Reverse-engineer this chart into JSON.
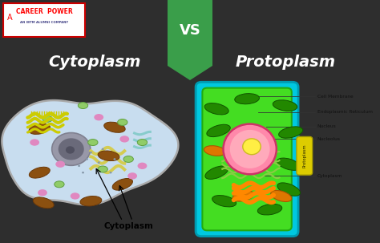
{
  "bg_dark": "#2e2e2e",
  "bg_left": "#f0f4f8",
  "bg_right": "#c8c8c8",
  "left_title": "Cytoplasm",
  "right_title": "Protoplasm",
  "vs_text": "VS",
  "vs_bg": "#3a9e4a",
  "title_color": "#ffffff",
  "fig_width": 4.74,
  "fig_height": 3.03,
  "cytoplasm_label": "Cytoplasm",
  "right_labels": [
    "Cell Membrane",
    "Endoplasmic Reticulum",
    "Nucleus",
    "Nucleolus",
    "Cytoplasm"
  ],
  "cell_fill": "#c8ddef",
  "cell_border": "#aaaaaa",
  "nucleus_outer": "#888898",
  "nucleus_inner": "#606070",
  "mito_color": "#8B4513",
  "golgi_color": "#cccc00",
  "er_color": "#d4c860",
  "green_dot": "#88cc66",
  "pink_dot": "#e080c0",
  "teal_er": "#88cccc"
}
